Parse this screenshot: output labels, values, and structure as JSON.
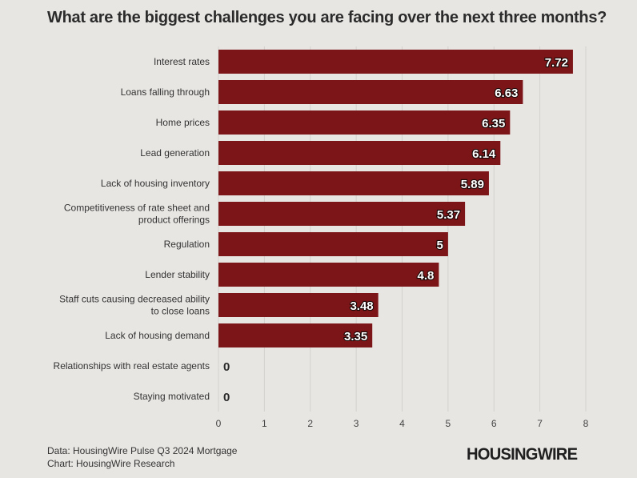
{
  "chart_data": {
    "type": "bar",
    "orientation": "horizontal",
    "title": "What are the biggest challenges you are facing over the next three months?",
    "categories": [
      "Interest rates",
      "Loans falling through",
      "Home prices",
      "Lead generation",
      "Lack of housing inventory",
      "Competitiveness of rate sheet and product offerings",
      "Regulation",
      "Lender stability",
      "Staff cuts causing decreased ability to close loans",
      "Lack of housing demand",
      "Relationships with real estate agents",
      "Staying motivated"
    ],
    "category_lines": [
      [
        "Interest rates"
      ],
      [
        "Loans falling through"
      ],
      [
        "Home prices"
      ],
      [
        "Lead generation"
      ],
      [
        "Lack of housing inventory"
      ],
      [
        "Competitiveness of rate sheet and",
        "product offerings"
      ],
      [
        "Regulation"
      ],
      [
        "Lender stability"
      ],
      [
        "Staff cuts causing decreased ability",
        "to close loans"
      ],
      [
        "Lack of housing demand"
      ],
      [
        "Relationships with real estate agents"
      ],
      [
        "Staying motivated"
      ]
    ],
    "values": [
      7.72,
      6.63,
      6.35,
      6.14,
      5.89,
      5.37,
      5,
      4.8,
      3.48,
      3.35,
      0,
      0
    ],
    "value_labels": [
      "7.72",
      "6.63",
      "6.35",
      "6.14",
      "5.89",
      "5.37",
      "5",
      "4.8",
      "3.48",
      "3.35",
      "0",
      "0"
    ],
    "xlim": [
      0,
      8
    ],
    "xticks": [
      0,
      1,
      2,
      3,
      4,
      5,
      6,
      7,
      8
    ],
    "xlabel": "",
    "ylabel": "",
    "grid": true,
    "bar_color": "#7c1517"
  },
  "footer": {
    "source": "Data: HousingWire Pulse Q3 2024 Mortgage",
    "credit": "Chart: HousingWire Research"
  },
  "brand": {
    "logo_text": "HOUSINGWIRE"
  }
}
